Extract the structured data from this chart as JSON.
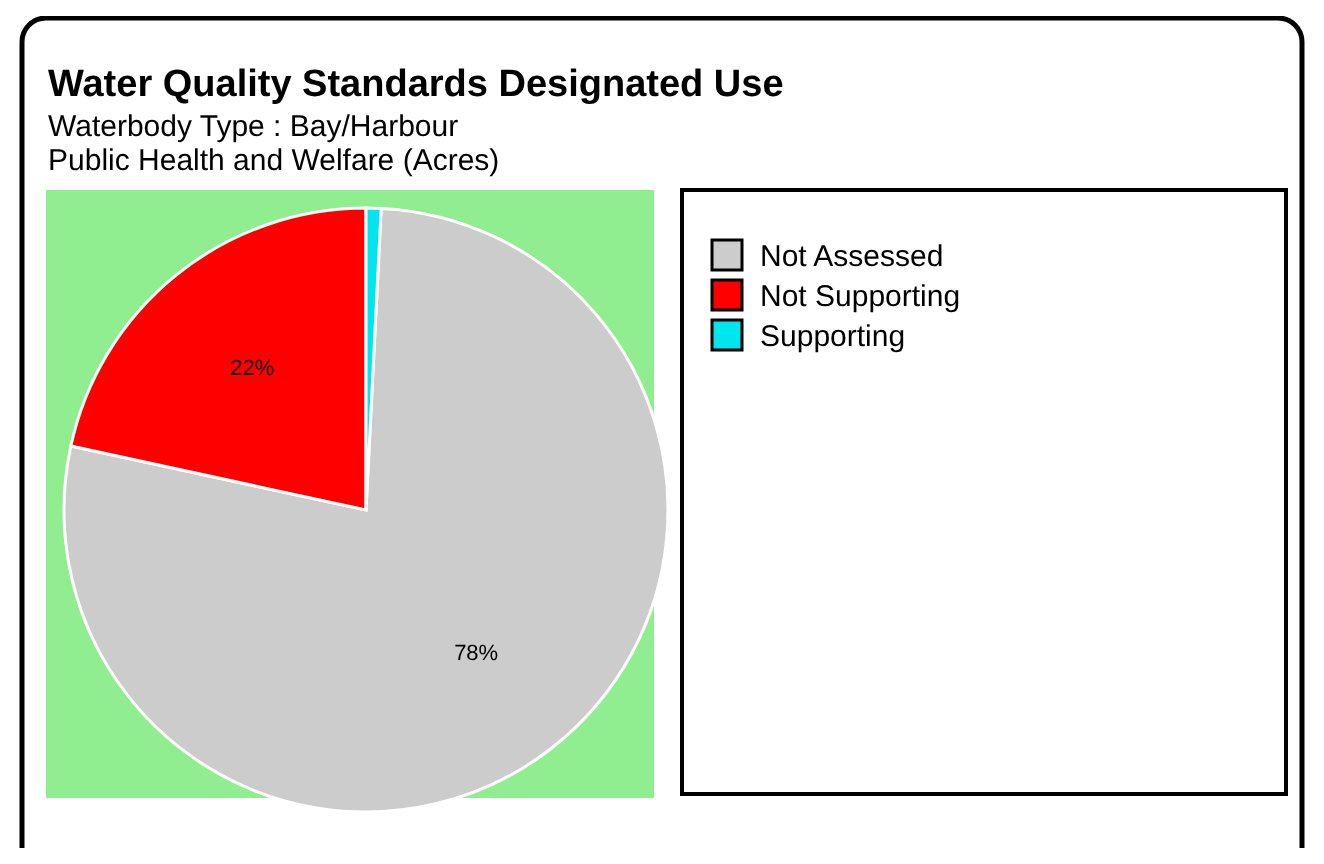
{
  "chart_data": {
    "type": "pie",
    "title": "Water Quality Standards Designated Use",
    "subtitle": "Waterbody Type : Bay/Harbour\nPublic Health and Welfare (Acres)",
    "categories": [
      "Not Assessed",
      "Not Supporting",
      "Supporting"
    ],
    "values": [
      77.6,
      21.6,
      0.8
    ],
    "colors": [
      "#cccccc",
      "#ff0000",
      "#00e5ee"
    ],
    "value_labels": [
      "78%",
      "22%",
      null
    ],
    "legend": "right"
  }
}
